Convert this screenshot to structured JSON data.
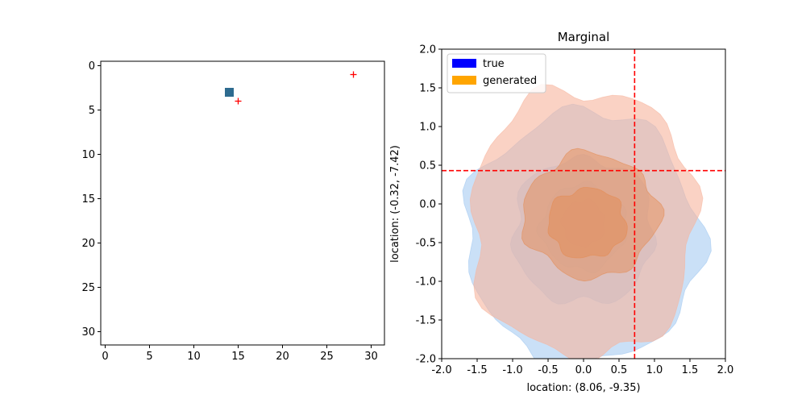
{
  "chart_data": [
    {
      "type": "scatter",
      "panel": "image-grid",
      "title": "",
      "xlabel": "",
      "ylabel": "",
      "xlim": [
        -0.5,
        31.5
      ],
      "ylim": [
        31.5,
        -0.5
      ],
      "y_inverted": true,
      "xticks": [
        0,
        5,
        10,
        15,
        20,
        25,
        30
      ],
      "yticks": [
        0,
        5,
        10,
        15,
        20,
        25,
        30
      ],
      "grid": false,
      "points": [
        {
          "name": "square-cell",
          "marker": "square",
          "color": "#2e6b8f",
          "x": 14,
          "y": 3
        },
        {
          "name": "red-plus-1",
          "marker": "plus",
          "color": "#ff0000",
          "x": 15,
          "y": 4
        },
        {
          "name": "red-plus-2",
          "marker": "plus",
          "color": "#ff0000",
          "x": 28,
          "y": 1
        }
      ]
    },
    {
      "type": "contour",
      "panel": "marginal",
      "title": "Marginal",
      "xlabel": "location: (8.06, -9.35)",
      "ylabel": "location: (-0.32, -7.42)",
      "xlim": [
        -2.0,
        2.0
      ],
      "ylim": [
        -2.0,
        2.0
      ],
      "xticks": [
        "-2.0",
        "-1.5",
        "-1.0",
        "-0.5",
        "0.0",
        "0.5",
        "1.0",
        "1.5",
        "2.0"
      ],
      "yticks": [
        "-2.0",
        "-1.5",
        "-1.0",
        "-0.5",
        "0.0",
        "0.5",
        "1.0",
        "1.5",
        "2.0"
      ],
      "grid": false,
      "legend": {
        "placement": "top-left",
        "entries": [
          {
            "label": "true",
            "color": "#0000ff"
          },
          {
            "label": "generated",
            "color": "#ffa500"
          }
        ]
      },
      "reference_lines": {
        "vertical_x": 0.72,
        "horizontal_y": 0.43,
        "color": "#ff0000",
        "style": "dashed"
      },
      "series": [
        {
          "group": "true",
          "fill": "#9ec6f0",
          "opacity": 0.55,
          "levels": [
            {
              "cx": 0.0,
              "cy": -0.45,
              "rx": 1.65,
              "ry": 1.65
            },
            {
              "cx": 0.0,
              "cy": -0.35,
              "rx": 1.0,
              "ry": 0.95
            },
            {
              "cx": 0.0,
              "cy": -0.3,
              "rx": 0.6,
              "ry": 0.55
            },
            {
              "cx": 0.0,
              "cy": -0.25,
              "rx": 0.3,
              "ry": 0.3
            }
          ]
        },
        {
          "group": "generated",
          "fill": "#f7b49c",
          "opacity": 0.6,
          "levels": [
            {
              "cx": 0.0,
              "cy": -0.25,
              "rx": 1.6,
              "ry": 1.75
            }
          ]
        },
        {
          "group": "generated",
          "fill": "#e58a50",
          "opacity": 0.45,
          "levels": [
            {
              "cx": 0.1,
              "cy": -0.15,
              "rx": 0.95,
              "ry": 0.8
            },
            {
              "cx": 0.05,
              "cy": -0.25,
              "rx": 0.55,
              "ry": 0.45
            }
          ]
        }
      ]
    }
  ]
}
